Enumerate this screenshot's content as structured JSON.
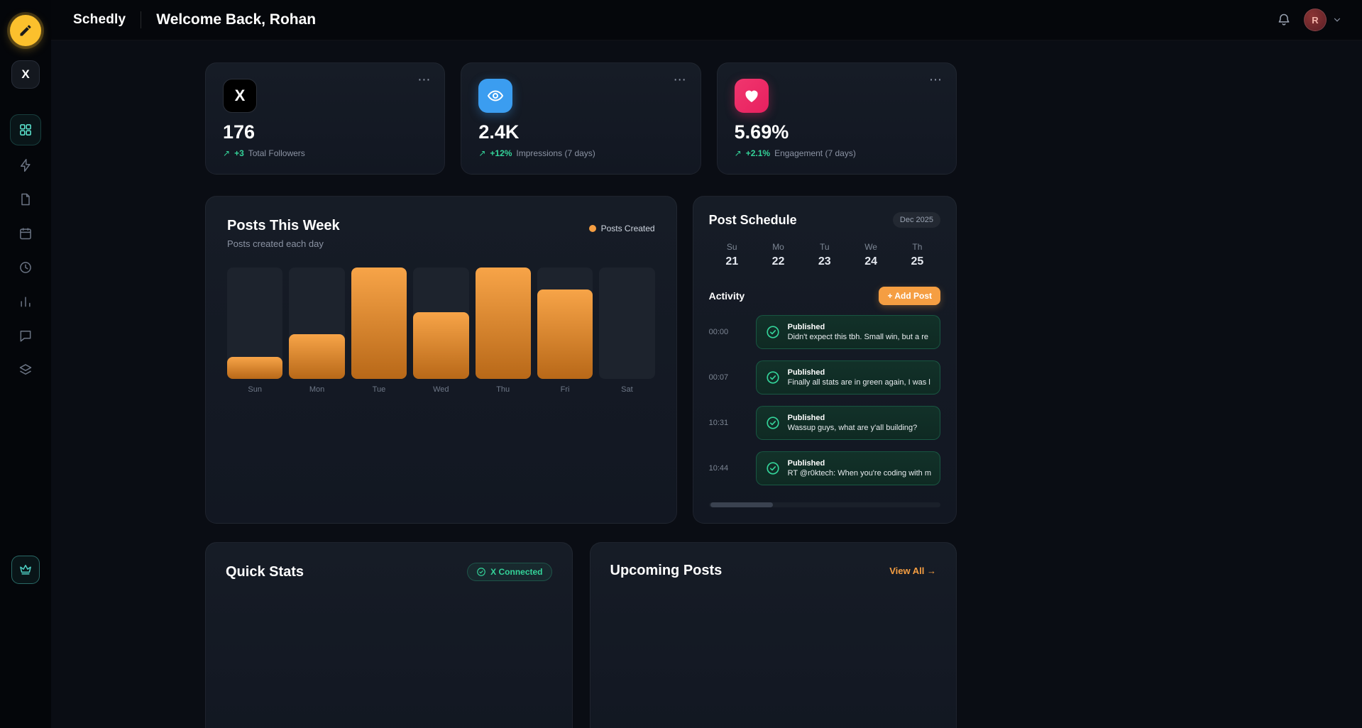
{
  "app": {
    "brand": "Schedly",
    "page_title": "Welcome Back, Rohan"
  },
  "icons": {
    "trend_up": "↗",
    "ellipsis": "⋯",
    "x_glyph": "X"
  },
  "header": {
    "avatar_initial": "R"
  },
  "sidebar": {
    "items": [
      "compose",
      "x-account",
      "dashboard",
      "quick-post",
      "drafts",
      "calendar",
      "history",
      "analytics",
      "comments",
      "queue",
      "premium"
    ],
    "active_item": "dashboard"
  },
  "stats": {
    "cards": [
      {
        "icon": "x-logo",
        "value": "176",
        "delta": "+3",
        "label": "Total Followers"
      },
      {
        "icon": "impressions-eye",
        "value": "2.4K",
        "delta": "+12%",
        "label": "Impressions (7 days)"
      },
      {
        "icon": "engagement-heart",
        "value": "5.69%",
        "delta": "+2.1%",
        "label": "Engagement (7 days)"
      }
    ]
  },
  "chart": {
    "title": "Posts This Week",
    "subtitle": "Posts created each day",
    "legend_label": "Posts Created"
  },
  "chart_data": {
    "type": "bar",
    "title": "Posts This Week",
    "categories": [
      "Sun",
      "Mon",
      "Tue",
      "Wed",
      "Thu",
      "Fri",
      "Sat"
    ],
    "values": [
      1,
      2,
      5,
      3,
      5,
      4,
      0
    ],
    "series_name": "Posts Created",
    "ylim": [
      0,
      5
    ],
    "bar_color": "#f59e42",
    "grid": false,
    "legend_position": "top-right"
  },
  "schedule": {
    "title": "Post Schedule",
    "month_badge": "Dec 2025",
    "days": [
      {
        "dow": "Su",
        "date": "21"
      },
      {
        "dow": "Mo",
        "date": "22"
      },
      {
        "dow": "Tu",
        "date": "23"
      },
      {
        "dow": "We",
        "date": "24"
      },
      {
        "dow": "Th",
        "date": "25"
      }
    ],
    "activity_title": "Activity",
    "add_post_label": "+ Add Post",
    "entries": [
      {
        "time": "00:00",
        "status": "Published",
        "text": "Didn't expect this tbh. Small win, but a re"
      },
      {
        "time": "00:07",
        "status": "Published",
        "text": "Finally all stats are in green again, I was l"
      },
      {
        "time": "10:31",
        "status": "Published",
        "text": "Wassup guys, what are y'all building?"
      },
      {
        "time": "10:44",
        "status": "Published",
        "text": "RT @r0ktech: When you're coding with m"
      }
    ]
  },
  "quick_stats": {
    "title": "Quick Stats",
    "connected_badge": "X Connected"
  },
  "upcoming": {
    "title": "Upcoming Posts",
    "view_all": "View All →"
  },
  "colors": {
    "accent_orange": "#f59e42",
    "positive_green": "#34d399",
    "active_teal": "#4fd1c5",
    "impressions_blue": "#3b9df0",
    "engagement_pink": "#f0366e",
    "logo_yellow": "#fbc02d"
  }
}
